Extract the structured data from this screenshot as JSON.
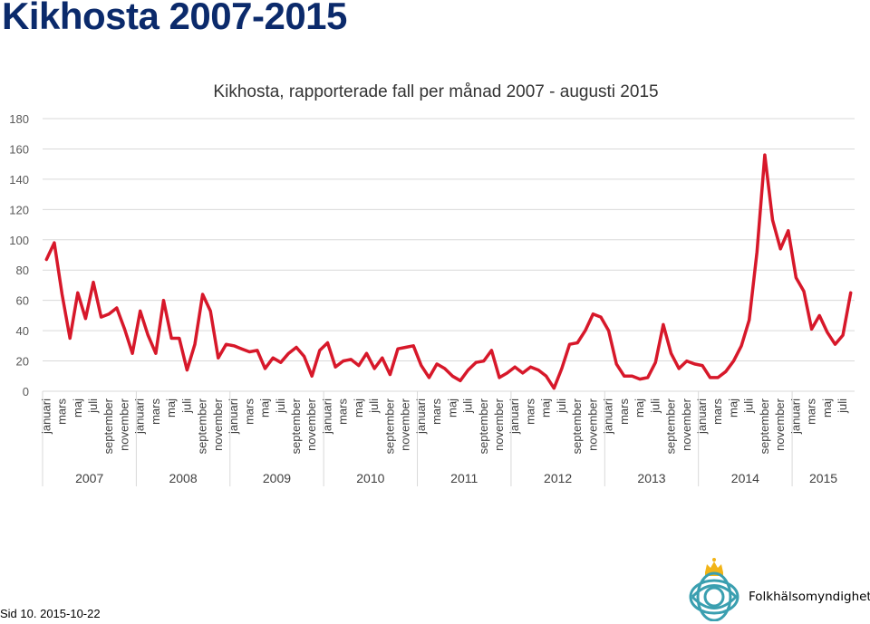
{
  "slide": {
    "title": "Kikhosta 2007-2015",
    "footer": "Sid 10. 2015-10-22",
    "org": "Folkhälsomyndigheten"
  },
  "colors": {
    "title": "#0b2a6b",
    "line": "#d7182a",
    "grid": "#d9d9d9",
    "logo": "#3a9fb0",
    "crown": "#f2b417"
  },
  "chart_data": {
    "type": "line",
    "title": "Kikhosta, rapporterade fall per månad 2007 - augusti 2015",
    "ylim": [
      0,
      180
    ],
    "yticks": [
      0,
      20,
      40,
      60,
      80,
      100,
      120,
      140,
      160,
      180
    ],
    "grid": true,
    "x_month_labels": [
      "januari",
      "mars",
      "maj",
      "juli",
      "september",
      "november"
    ],
    "years": [
      {
        "label": "2007",
        "months": 12
      },
      {
        "label": "2008",
        "months": 12
      },
      {
        "label": "2009",
        "months": 12
      },
      {
        "label": "2010",
        "months": 12
      },
      {
        "label": "2011",
        "months": 12
      },
      {
        "label": "2012",
        "months": 12
      },
      {
        "label": "2013",
        "months": 12
      },
      {
        "label": "2014",
        "months": 12
      },
      {
        "label": "2015",
        "months": 8
      }
    ],
    "series": [
      {
        "values": [
          87,
          98,
          64,
          35,
          65,
          48,
          72,
          49,
          51,
          55,
          41,
          25,
          53,
          37,
          25,
          60,
          35,
          35,
          14,
          31,
          64,
          53,
          22,
          31,
          30,
          28,
          26,
          27,
          15,
          22,
          19,
          25,
          29,
          23,
          10,
          27,
          32,
          16,
          20,
          21,
          17,
          25,
          15,
          22,
          11,
          28,
          29,
          30,
          17,
          9,
          18,
          15,
          10,
          7,
          14,
          19,
          20,
          27,
          9,
          12,
          16,
          12,
          16,
          14,
          10,
          2,
          15,
          31,
          32,
          40,
          51,
          49,
          40,
          18,
          10,
          10,
          8,
          9,
          19,
          44,
          25,
          15,
          20,
          18,
          17,
          9,
          9,
          13,
          20,
          30,
          47,
          92,
          156,
          113,
          94,
          106,
          75,
          66,
          41,
          50,
          39,
          31,
          37,
          65
        ]
      }
    ]
  }
}
